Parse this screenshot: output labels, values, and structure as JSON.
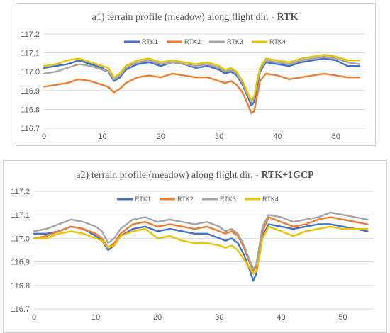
{
  "chart_data": [
    {
      "type": "line",
      "title": "a1) terrain profile (meadow) along flight dir. - ",
      "title_bold": "RTK",
      "xlabel": "",
      "ylabel": "",
      "xlim": [
        0,
        55
      ],
      "ylim": [
        116.7,
        117.2
      ],
      "xticks": [
        "0",
        "10",
        "20",
        "30",
        "40",
        "50"
      ],
      "yticks": [
        "117.2",
        "117.1",
        "117.0",
        "116.9",
        "116.8",
        "116.7"
      ],
      "grid": true,
      "legend": "top",
      "series": [
        {
          "name": "RTK1",
          "color": "#4472C4",
          "x": [
            0,
            2,
            4,
            6,
            8,
            10,
            11,
            12,
            13,
            14,
            16,
            18,
            20,
            22,
            24,
            26,
            28,
            30,
            31,
            32,
            33,
            34,
            35,
            35.5,
            36,
            36.5,
            37,
            38,
            40,
            42,
            44,
            46,
            48,
            50,
            52,
            54
          ],
          "y": [
            117.02,
            117.03,
            117.04,
            117.06,
            117.04,
            117.02,
            117.0,
            116.95,
            116.97,
            117.01,
            117.04,
            117.05,
            117.03,
            117.05,
            117.04,
            117.02,
            117.03,
            117.01,
            116.99,
            117.0,
            116.98,
            116.93,
            116.86,
            116.82,
            116.84,
            116.92,
            117.0,
            117.05,
            117.04,
            117.03,
            117.05,
            117.06,
            117.07,
            117.06,
            117.03,
            117.03
          ]
        },
        {
          "name": "RTK2",
          "color": "#ED7D31",
          "x": [
            0,
            2,
            4,
            6,
            8,
            10,
            11,
            12,
            13,
            14,
            16,
            18,
            20,
            22,
            24,
            26,
            28,
            30,
            31,
            32,
            33,
            34,
            35,
            35.5,
            36,
            36.5,
            37,
            38,
            40,
            42,
            44,
            46,
            48,
            50,
            52,
            54
          ],
          "y": [
            116.92,
            116.93,
            116.94,
            116.96,
            116.95,
            116.93,
            116.92,
            116.89,
            116.91,
            116.94,
            116.97,
            116.98,
            116.97,
            116.99,
            116.98,
            116.97,
            116.97,
            116.95,
            116.94,
            116.95,
            116.93,
            116.89,
            116.82,
            116.78,
            116.79,
            116.87,
            116.95,
            116.99,
            116.98,
            116.96,
            116.97,
            116.98,
            116.99,
            116.98,
            116.97,
            116.97
          ]
        },
        {
          "name": "RTK3",
          "color": "#A5A5A5",
          "x": [
            0,
            2,
            4,
            6,
            8,
            10,
            11,
            12,
            13,
            14,
            16,
            18,
            20,
            22,
            24,
            26,
            28,
            30,
            31,
            32,
            33,
            34,
            35,
            35.5,
            36,
            36.5,
            37,
            38,
            40,
            42,
            44,
            46,
            48,
            50,
            52,
            54
          ],
          "y": [
            116.99,
            117.0,
            117.02,
            117.04,
            117.03,
            117.01,
            117.0,
            116.96,
            116.98,
            117.02,
            117.05,
            117.06,
            117.04,
            117.05,
            117.04,
            117.03,
            117.04,
            117.02,
            117.0,
            117.01,
            116.99,
            116.94,
            116.87,
            116.84,
            116.86,
            116.94,
            117.01,
            117.06,
            117.05,
            117.04,
            117.06,
            117.07,
            117.08,
            117.07,
            117.05,
            117.04
          ]
        },
        {
          "name": "RTK4",
          "color": "#E8C300",
          "x": [
            0,
            2,
            4,
            6,
            8,
            10,
            11,
            12,
            13,
            14,
            16,
            18,
            20,
            22,
            24,
            26,
            28,
            30,
            31,
            32,
            33,
            34,
            35,
            35.5,
            36,
            36.5,
            37,
            38,
            40,
            42,
            44,
            46,
            48,
            50,
            52,
            54
          ],
          "y": [
            117.03,
            117.04,
            117.06,
            117.07,
            117.05,
            117.03,
            117.02,
            116.97,
            116.99,
            117.03,
            117.06,
            117.07,
            117.05,
            117.06,
            117.05,
            117.04,
            117.05,
            117.03,
            117.01,
            117.02,
            117.0,
            116.95,
            116.88,
            116.85,
            116.87,
            116.95,
            117.02,
            117.07,
            117.06,
            117.05,
            117.07,
            117.08,
            117.09,
            117.08,
            117.06,
            117.06
          ]
        }
      ]
    },
    {
      "type": "line",
      "title": "a2) terrain profile (meadow) along flight dir. - ",
      "title_bold": "RTK+1GCP",
      "xlabel": "",
      "ylabel": "",
      "xlim": [
        0,
        55
      ],
      "ylim": [
        116.7,
        117.2
      ],
      "xticks": [
        "0",
        "10",
        "20",
        "30",
        "40",
        "50"
      ],
      "yticks": [
        "117.2",
        "117.1",
        "117.0",
        "116.9",
        "116.8",
        "116.7"
      ],
      "grid": true,
      "legend": "top",
      "series": [
        {
          "name": "RTK1",
          "color": "#4472C4",
          "x": [
            0,
            2,
            4,
            6,
            8,
            10,
            11,
            12,
            13,
            14,
            16,
            18,
            20,
            22,
            24,
            26,
            28,
            30,
            31,
            32,
            33,
            34,
            35,
            35.5,
            36,
            36.5,
            37,
            38,
            40,
            42,
            44,
            46,
            48,
            50,
            52,
            54
          ],
          "y": [
            117.02,
            117.02,
            117.03,
            117.05,
            117.04,
            117.01,
            116.99,
            116.95,
            116.97,
            117.01,
            117.04,
            117.05,
            117.03,
            117.04,
            117.03,
            117.02,
            117.02,
            117.0,
            116.99,
            117.0,
            116.98,
            116.93,
            116.86,
            116.82,
            116.85,
            116.93,
            117.01,
            117.06,
            117.05,
            117.04,
            117.05,
            117.06,
            117.06,
            117.05,
            117.04,
            117.03
          ]
        },
        {
          "name": "RTK2",
          "color": "#ED7D31",
          "x": [
            0,
            2,
            4,
            6,
            8,
            10,
            11,
            12,
            13,
            14,
            16,
            18,
            20,
            22,
            24,
            26,
            28,
            30,
            31,
            32,
            33,
            34,
            35,
            35.5,
            36,
            36.5,
            37,
            38,
            40,
            42,
            44,
            46,
            48,
            50,
            52,
            54
          ],
          "y": [
            117.0,
            117.01,
            117.03,
            117.05,
            117.04,
            117.02,
            117.0,
            116.96,
            116.98,
            117.02,
            117.06,
            117.07,
            117.05,
            117.06,
            117.05,
            117.04,
            117.05,
            117.03,
            117.02,
            117.03,
            117.01,
            116.96,
            116.89,
            116.86,
            116.88,
            116.95,
            117.03,
            117.09,
            117.07,
            117.05,
            117.06,
            117.08,
            117.09,
            117.08,
            117.07,
            117.06
          ]
        },
        {
          "name": "RTK3",
          "color": "#A5A5A5",
          "x": [
            0,
            2,
            4,
            6,
            8,
            10,
            11,
            12,
            13,
            14,
            16,
            18,
            20,
            22,
            24,
            26,
            28,
            30,
            31,
            32,
            33,
            34,
            35,
            35.5,
            36,
            36.5,
            37,
            38,
            40,
            42,
            44,
            46,
            48,
            50,
            52,
            54
          ],
          "y": [
            117.03,
            117.04,
            117.06,
            117.08,
            117.07,
            117.05,
            117.03,
            116.98,
            117.0,
            117.04,
            117.08,
            117.09,
            117.07,
            117.08,
            117.07,
            117.06,
            117.07,
            117.05,
            117.03,
            117.04,
            117.02,
            116.97,
            116.9,
            116.87,
            116.89,
            116.97,
            117.05,
            117.1,
            117.09,
            117.07,
            117.08,
            117.09,
            117.11,
            117.1,
            117.09,
            117.08
          ]
        },
        {
          "name": "RTK4",
          "color": "#E8C300",
          "x": [
            0,
            2,
            4,
            6,
            8,
            10,
            11,
            12,
            13,
            14,
            16,
            18,
            20,
            22,
            24,
            26,
            28,
            30,
            31,
            32,
            33,
            34,
            35,
            35.5,
            36,
            36.5,
            37,
            38,
            40,
            42,
            44,
            46,
            48,
            50,
            52,
            54
          ],
          "y": [
            117.0,
            117.0,
            117.02,
            117.03,
            117.02,
            117.0,
            116.99,
            116.96,
            116.97,
            117.01,
            117.03,
            117.04,
            117.0,
            117.01,
            116.99,
            116.98,
            116.98,
            116.97,
            116.96,
            116.97,
            116.95,
            116.91,
            116.87,
            116.85,
            116.86,
            116.92,
            117.0,
            117.05,
            117.03,
            117.01,
            117.03,
            117.04,
            117.05,
            117.04,
            117.04,
            117.04
          ]
        }
      ]
    }
  ]
}
